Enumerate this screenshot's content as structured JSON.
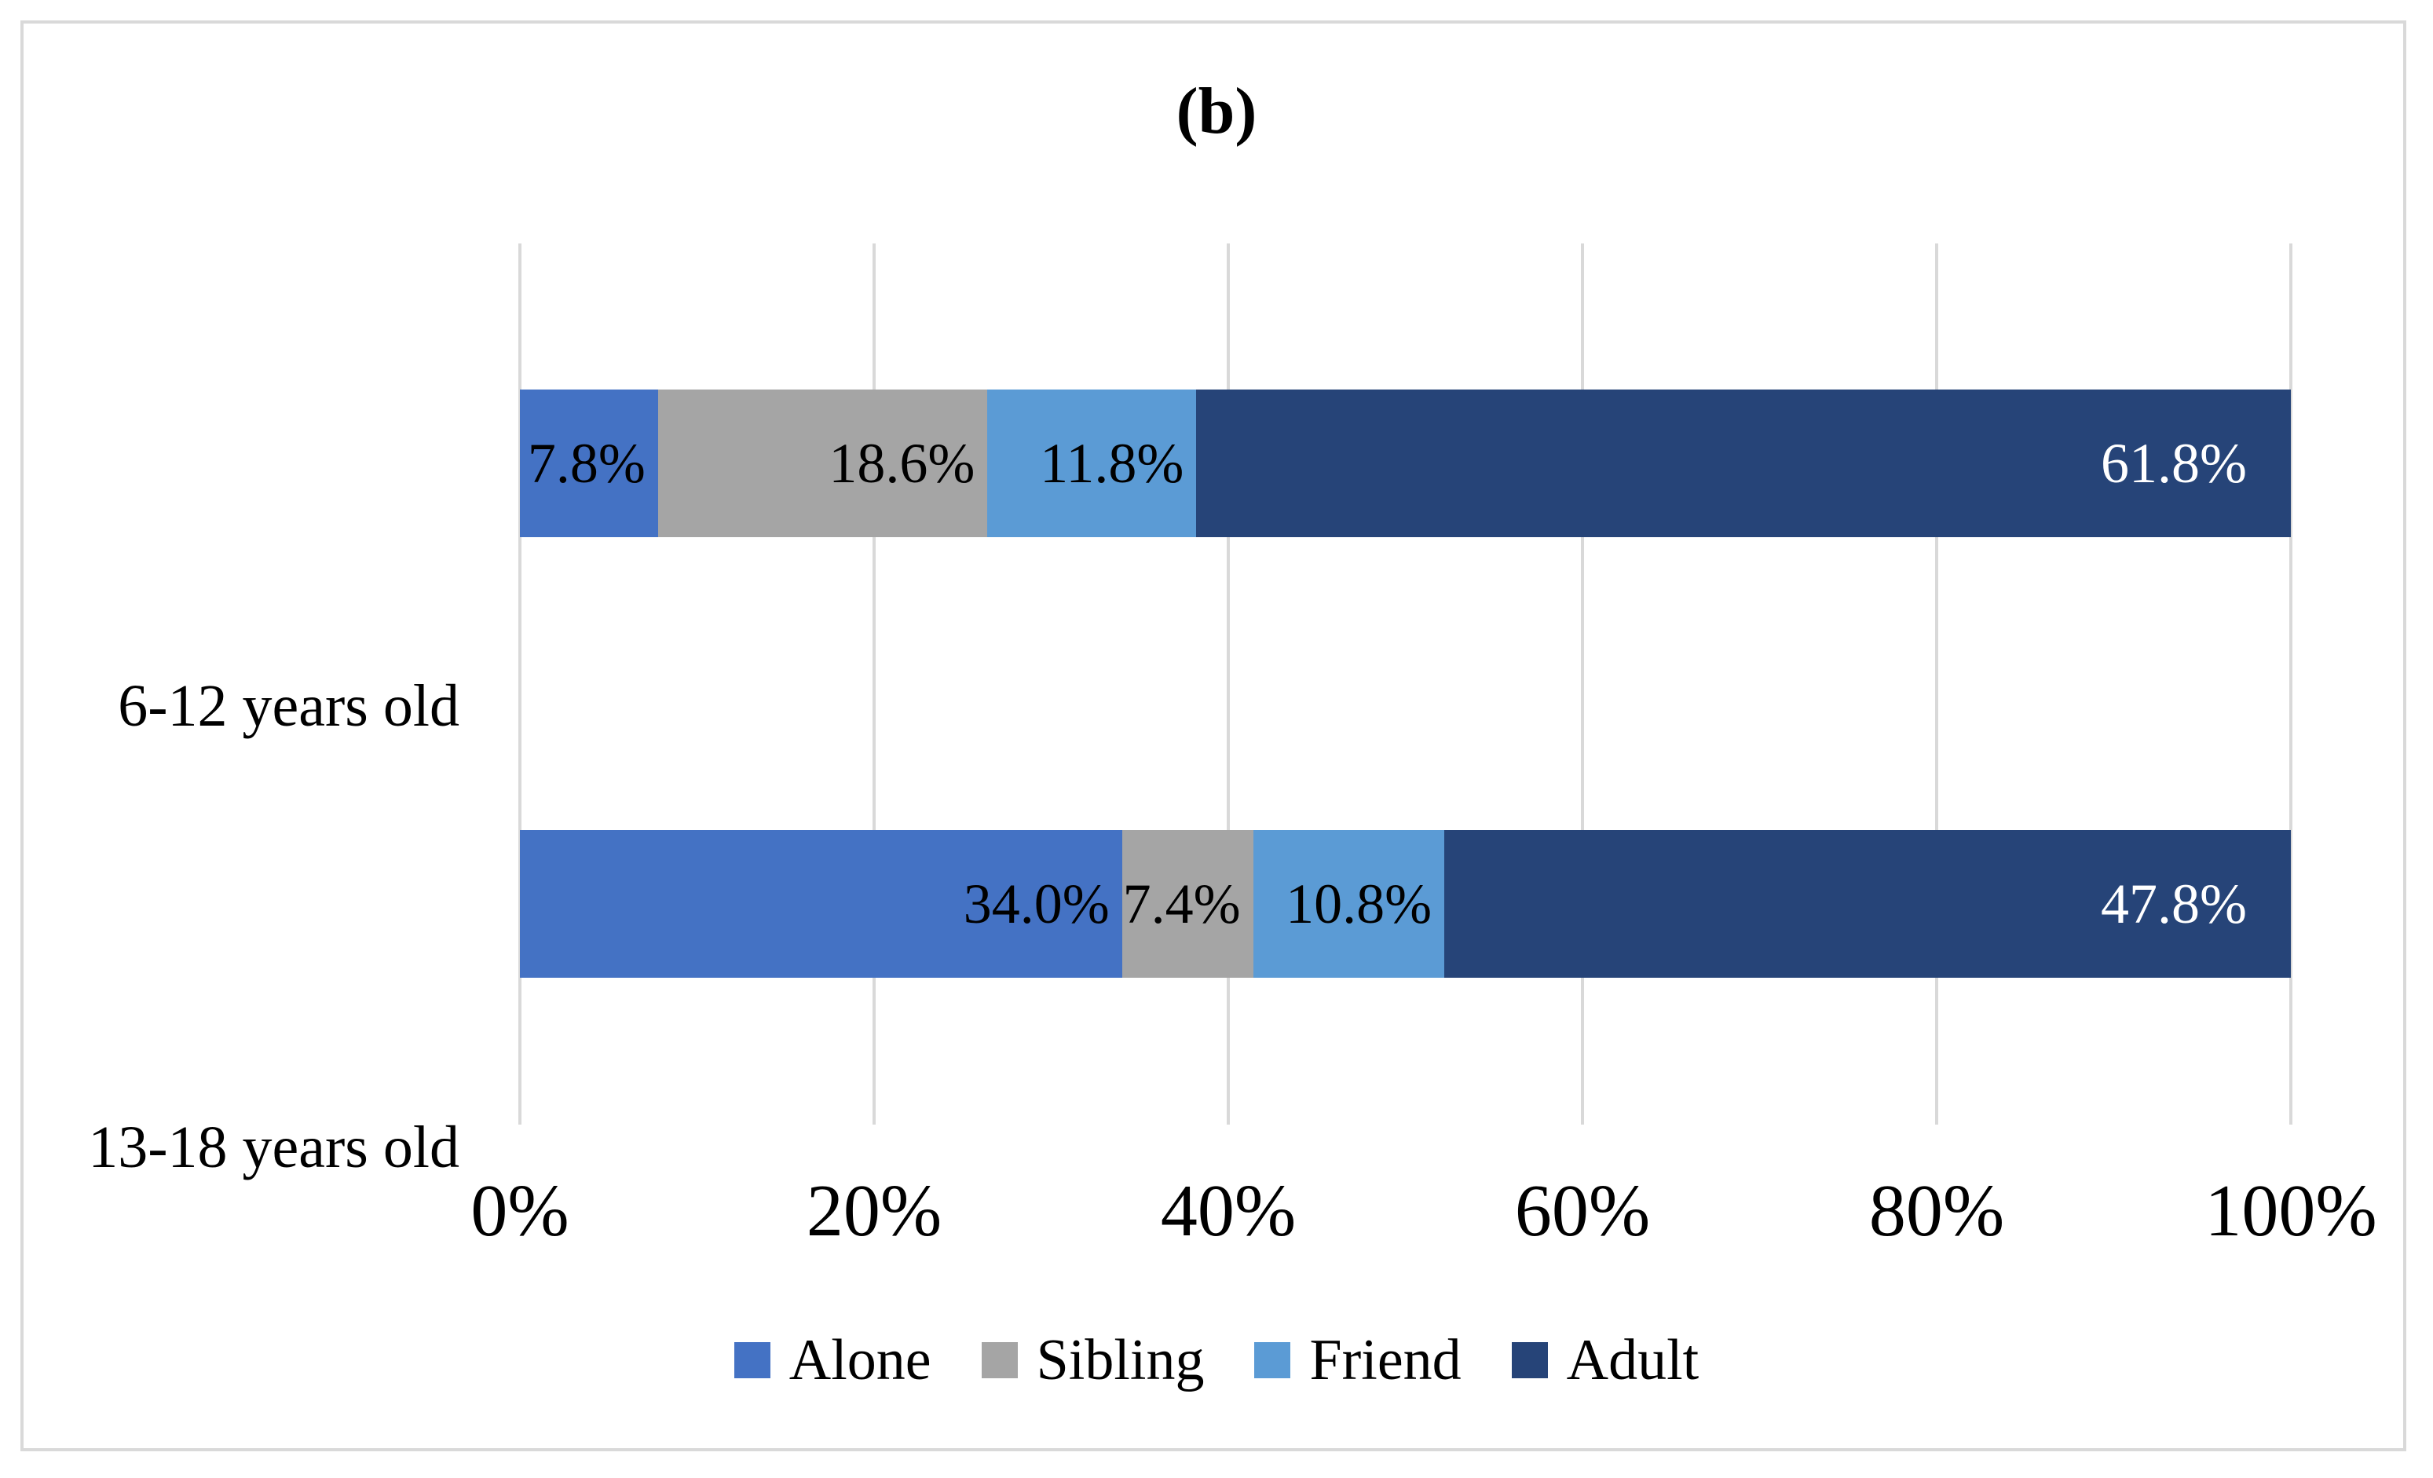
{
  "figure": {
    "title": "(b)"
  },
  "colors": {
    "gridline": "#D9D9D9",
    "panel_border": "#D9D9D9",
    "background": "#FFFFFF",
    "text": "#000000"
  },
  "chart_data": {
    "type": "bar",
    "subtype": "stacked-horizontal-100pct",
    "title": "(b)",
    "categories": [
      "6-12 years old",
      "13-18 years old"
    ],
    "series": [
      {
        "name": "Alone",
        "color": "#4472C4",
        "label_color": "#000000",
        "values": [
          7.8,
          34.0
        ],
        "labels": [
          "7.8%",
          "34.0%"
        ]
      },
      {
        "name": "Sibling",
        "color": "#A5A5A5",
        "label_color": "#000000",
        "values": [
          18.6,
          7.4
        ],
        "labels": [
          "18.6%",
          "7.4%"
        ]
      },
      {
        "name": "Friend",
        "color": "#5B9BD5",
        "label_color": "#000000",
        "values": [
          11.8,
          10.8
        ],
        "labels": [
          "11.8%",
          "10.8%"
        ]
      },
      {
        "name": "Adult",
        "color": "#264478",
        "label_color": "#FFFFFF",
        "values": [
          61.8,
          47.8
        ],
        "labels": [
          "61.8%",
          "47.8%"
        ]
      }
    ],
    "x_axis": {
      "ticks": [
        0,
        20,
        40,
        60,
        80,
        100
      ],
      "tick_labels": [
        "0%",
        "20%",
        "40%",
        "60%",
        "80%",
        "100%"
      ],
      "range": [
        0,
        100
      ],
      "gridlines": true
    },
    "legend": {
      "position": "bottom",
      "entries": [
        "Alone",
        "Sibling",
        "Friend",
        "Adult"
      ]
    },
    "data_labels": "inside-end"
  }
}
